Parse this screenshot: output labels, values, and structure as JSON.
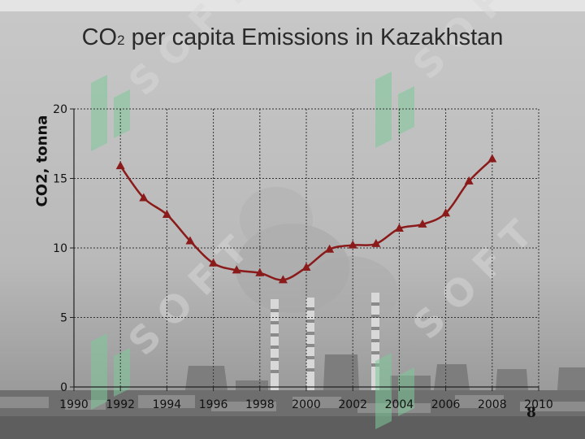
{
  "title": {
    "main": "CO",
    "subscript": "2",
    "rest": " per capita Emissions in Kazakhstan"
  },
  "page_number": "8",
  "chart_data": {
    "type": "line",
    "title": "CO2 per capita Emissions in Kazakhstan",
    "xlabel": "",
    "ylabel": "CO2, tonna",
    "xlim": [
      1990,
      2010
    ],
    "ylim": [
      0,
      20
    ],
    "x_ticks": [
      1990,
      1992,
      1994,
      1996,
      1998,
      2000,
      2002,
      2004,
      2006,
      2008,
      2010
    ],
    "y_ticks": [
      0,
      5,
      10,
      15,
      20
    ],
    "grid": true,
    "legend": "none",
    "series": [
      {
        "color": "#8b1a1a",
        "marker": "triangle",
        "points": [
          {
            "x": 1992,
            "y": 15.9
          },
          {
            "x": 1993,
            "y": 13.6
          },
          {
            "x": 1994,
            "y": 12.4
          },
          {
            "x": 1995,
            "y": 10.5
          },
          {
            "x": 1996,
            "y": 8.9
          },
          {
            "x": 1997,
            "y": 8.4
          },
          {
            "x": 1998,
            "y": 8.2
          },
          {
            "x": 1999,
            "y": 7.7
          },
          {
            "x": 2000,
            "y": 8.6
          },
          {
            "x": 2001,
            "y": 9.9
          },
          {
            "x": 2002,
            "y": 10.2
          },
          {
            "x": 2003,
            "y": 10.3
          },
          {
            "x": 2004,
            "y": 11.4
          },
          {
            "x": 2005,
            "y": 11.7
          },
          {
            "x": 2006,
            "y": 12.5
          },
          {
            "x": 2007,
            "y": 14.8
          },
          {
            "x": 2008,
            "y": 16.4
          }
        ]
      }
    ]
  }
}
